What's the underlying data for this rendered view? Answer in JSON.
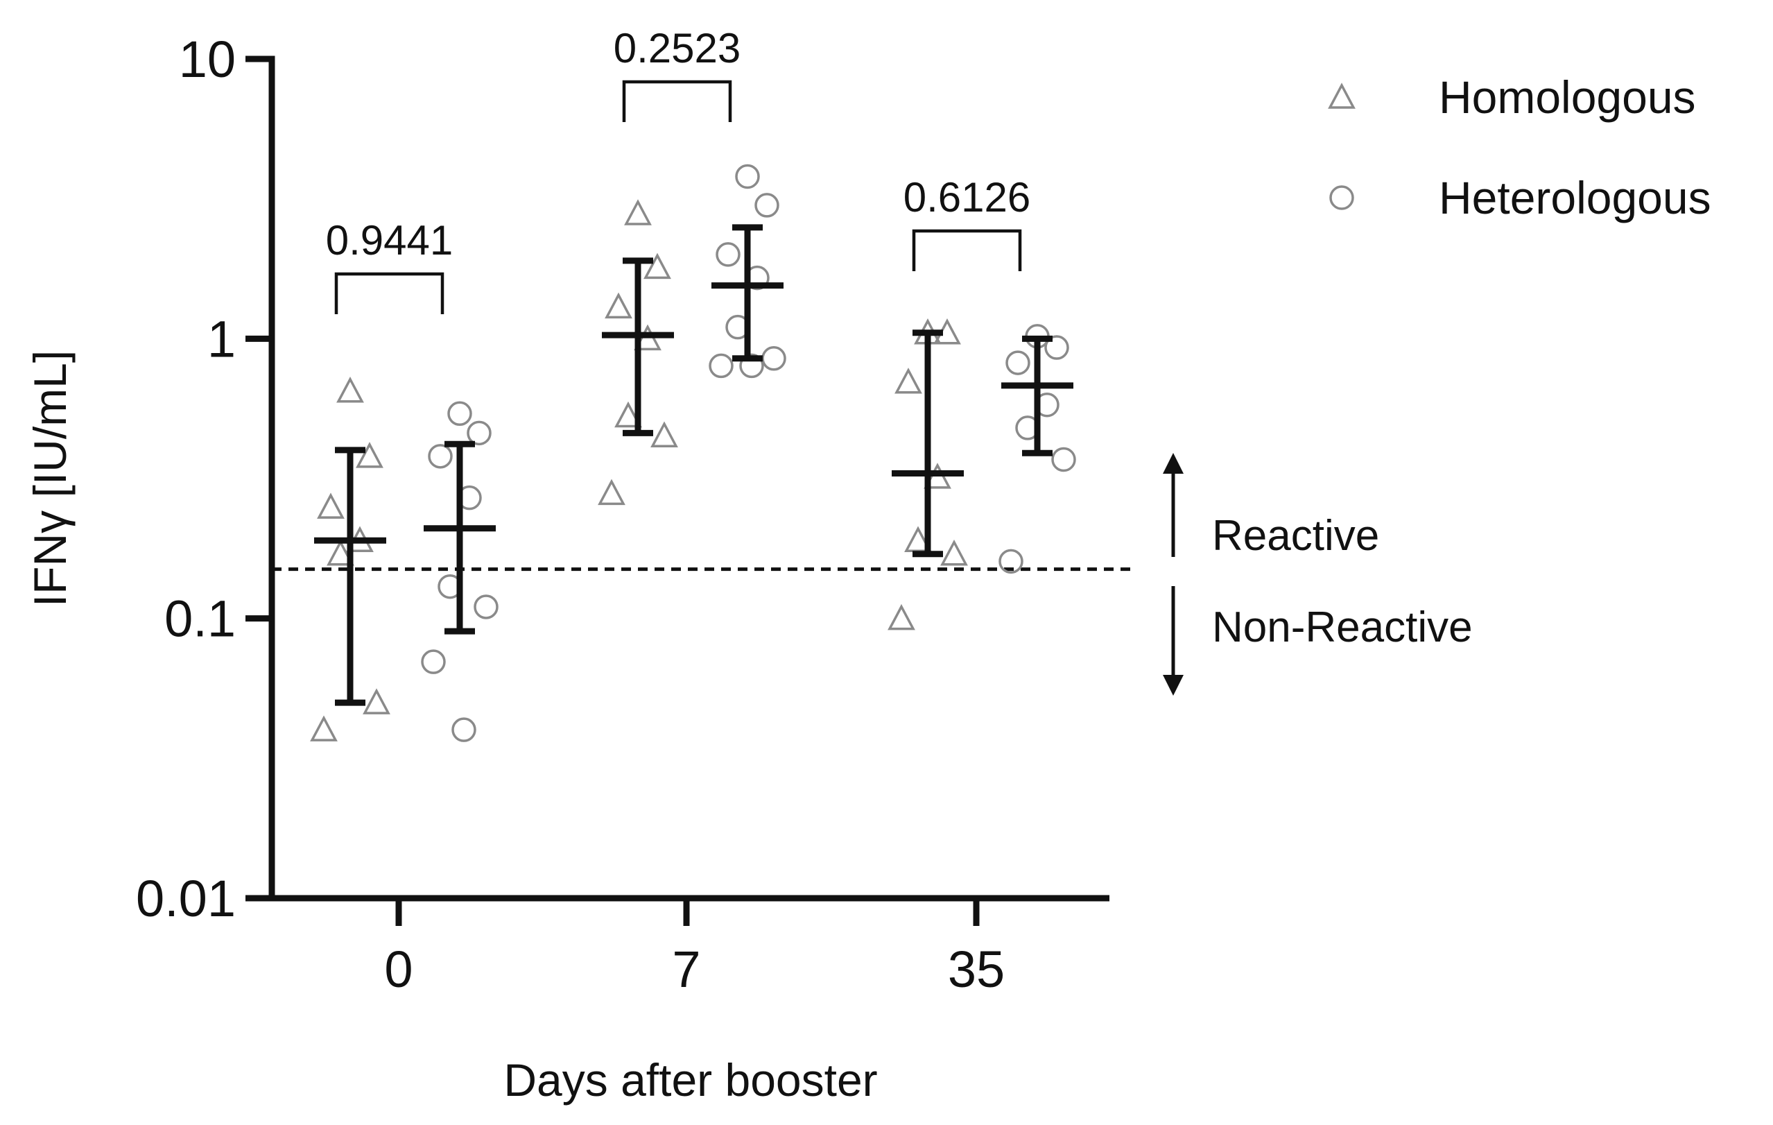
{
  "chart_data": {
    "type": "scatter",
    "title": "",
    "xlabel": "Days after booster",
    "ylabel": "IFNγ [IU/mL]",
    "yscale": "log",
    "ylim": [
      0.01,
      10
    ],
    "yticks": [
      {
        "value": 10,
        "label": "10"
      },
      {
        "value": 1,
        "label": "1"
      },
      {
        "value": 0.1,
        "label": "0.1"
      },
      {
        "value": 0.01,
        "label": "0.01"
      }
    ],
    "categories": [
      "0",
      "7",
      "35"
    ],
    "threshold": 0.15,
    "series": [
      {
        "name": "Homologous",
        "marker": "triangle",
        "color": "#8a8a8a",
        "points": [
          [
            0.65,
            0.38,
            0.25,
            0.19,
            0.17,
            0.05,
            0.04
          ],
          [
            2.8,
            1.8,
            1.3,
            1.0,
            0.53,
            0.45,
            0.28
          ],
          [
            1.05,
            1.05,
            0.7,
            0.32,
            0.19,
            0.17,
            0.1
          ]
        ],
        "center": [
          0.19,
          1.03,
          0.33
        ],
        "err_low": [
          0.05,
          0.46,
          0.17
        ],
        "err_high": [
          0.4,
          1.9,
          1.05
        ]
      },
      {
        "name": "Heterologous",
        "marker": "circle",
        "color": "#8a8a8a",
        "points": [
          [
            0.54,
            0.46,
            0.38,
            0.27,
            0.13,
            0.11,
            0.07,
            0.04
          ],
          [
            3.8,
            3.0,
            2.0,
            1.65,
            1.1,
            0.85,
            0.8,
            0.8
          ],
          [
            1.02,
            0.93,
            0.82,
            0.58,
            0.48,
            0.37,
            0.16
          ]
        ],
        "center": [
          0.21,
          1.55,
          0.68
        ],
        "err_low": [
          0.09,
          0.85,
          0.39
        ],
        "err_high": [
          0.42,
          2.5,
          1.0
        ]
      }
    ],
    "comparisons": [
      {
        "category": "0",
        "p_value": "0.9441"
      },
      {
        "category": "7",
        "p_value": "0.2523"
      },
      {
        "category": "35",
        "p_value": "0.6126"
      }
    ],
    "annotations": {
      "above": "Reactive",
      "below": "Non-Reactive"
    },
    "legend": {
      "position": "top-right"
    }
  }
}
